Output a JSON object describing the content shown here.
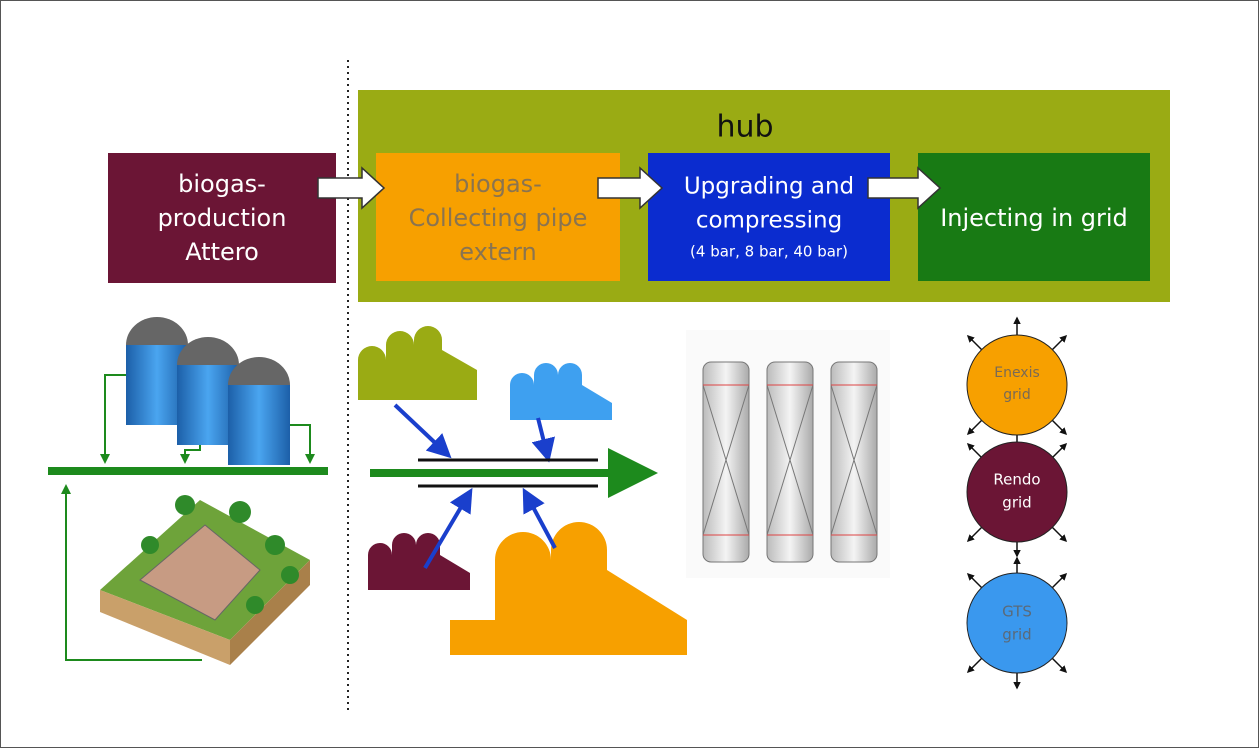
{
  "hub": {
    "title": "hub"
  },
  "nodes": [
    {
      "lines": [
        "biogas-",
        "production",
        "Attero"
      ]
    },
    {
      "lines": [
        "biogas-",
        "Collecting pipe",
        "extern"
      ]
    },
    {
      "lines": [
        "Upgrading and",
        "compressing",
        "(4 bar, 8 bar, 40 bar)"
      ]
    },
    {
      "lines": [
        "Injecting in grid"
      ]
    }
  ],
  "grids": [
    {
      "lines": [
        "Enexis",
        "grid"
      ]
    },
    {
      "lines": [
        "Rendo",
        "grid"
      ]
    },
    {
      "lines": [
        "GTS",
        "grid"
      ]
    }
  ]
}
